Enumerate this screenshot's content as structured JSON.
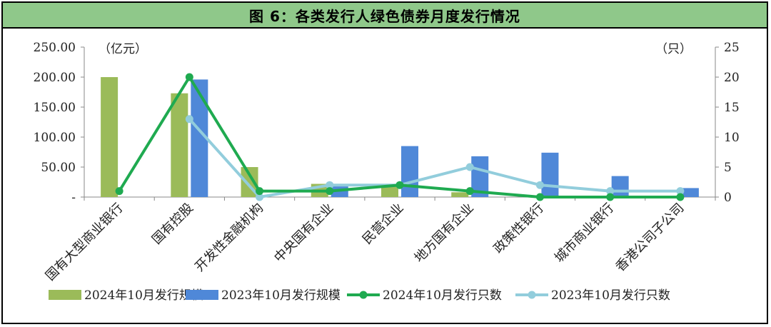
{
  "chart_data": {
    "type": "bar+line",
    "title": "图 6：各类发行人绿色债券月度发行情况",
    "left_unit": "（亿元）",
    "right_unit": "（只）",
    "categories": [
      "国有大型商业银行",
      "国有控股",
      "开发性金融机构",
      "中央国有企业",
      "民营企业",
      "地方国有企业",
      "政策性银行",
      "城市商业银行",
      "香港公司子公司"
    ],
    "left_ylim": [
      0,
      250
    ],
    "left_ticks": [
      "-",
      "50.00",
      "100.00",
      "150.00",
      "200.00",
      "250.00"
    ],
    "right_ylim": [
      0,
      25
    ],
    "right_ticks": [
      "0",
      "5",
      "10",
      "15",
      "20",
      "25"
    ],
    "bar_series": [
      {
        "name": "2024年10月发行规模",
        "color": "#9BBB59",
        "values": [
          200,
          173,
          50,
          22,
          18,
          8,
          0,
          0,
          0
        ]
      },
      {
        "name": "2023年10月发行规模",
        "color": "#4F88D8",
        "values": [
          0,
          196,
          0,
          22,
          85,
          68,
          74,
          35,
          15
        ]
      }
    ],
    "line_series": [
      {
        "name": "2024年10月发行只数",
        "color": "#1FAA50",
        "values": [
          1,
          20,
          1,
          1,
          2,
          1,
          0,
          0,
          0
        ]
      },
      {
        "name": "2023年10月发行只数",
        "color": "#92CDDC",
        "values": [
          null,
          13,
          0,
          2,
          2,
          5,
          2,
          1,
          1
        ]
      }
    ],
    "legend_position": "bottom"
  }
}
